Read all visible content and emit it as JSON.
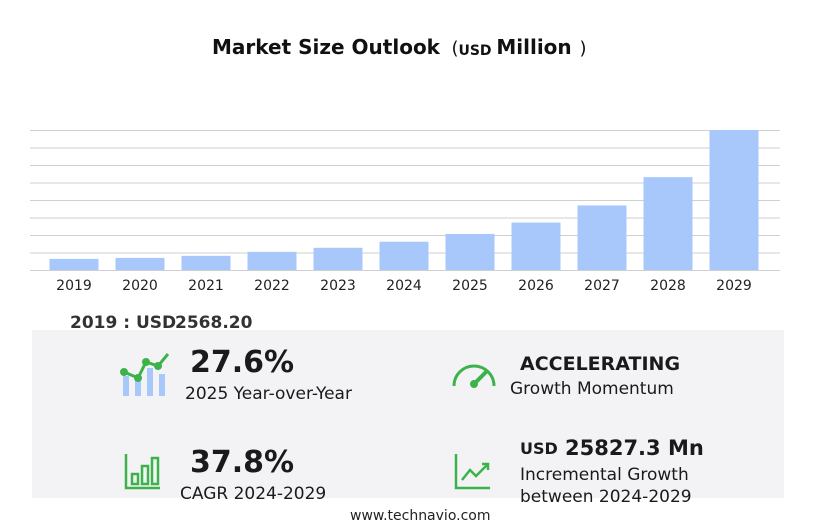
{
  "chart_data": {
    "type": "bar",
    "title": "Market Size Outlook",
    "title_unit": [
      "(",
      "USD",
      "Million",
      ")"
    ],
    "categories": [
      "2019",
      "2020",
      "2021",
      "2022",
      "2023",
      "2024",
      "2025",
      "2026",
      "2027",
      "2028",
      "2029"
    ],
    "values": [
      2568.2,
      2800,
      3270,
      4200,
      5130,
      6533,
      8336,
      10960,
      14930,
      21460,
      32360
    ],
    "color": "#a8c8fb"
  },
  "stats": {
    "base_year": "2019 : USD",
    "base_value": "2568.20",
    "yoy_value": "27.6%",
    "yoy_label": "2025 Year-over-Year",
    "momentum_value": "ACCELERATING",
    "momentum_label": "Growth Momentum",
    "cagr_value": "37.8%",
    "cagr_label": "CAGR 2024-2029",
    "incr_currency": "USD",
    "incr_value": "25827.3 Mn",
    "incr_label_1": "Incremental Growth",
    "incr_label_2": "between 2024-2029"
  },
  "footer": "www.technavio.com"
}
